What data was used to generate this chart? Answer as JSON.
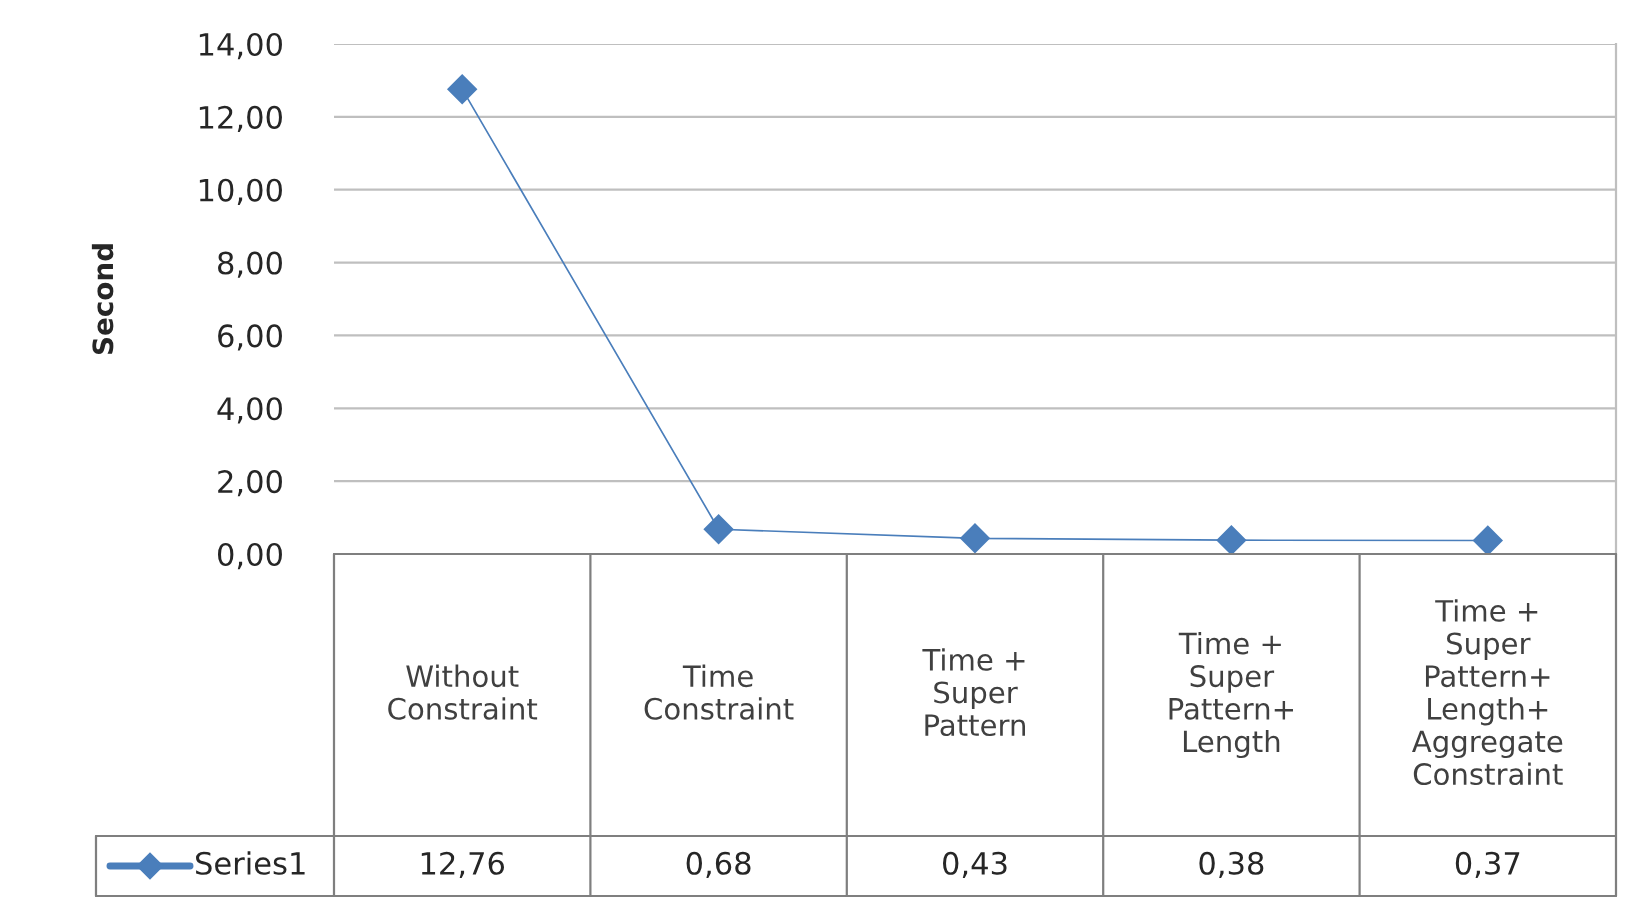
{
  "chart_data": {
    "type": "line",
    "ylabel": "Second",
    "categories": [
      "Without\nConstraint",
      "Time\nConstraint",
      "Time +\nSuper\nPattern",
      "Time +\nSuper\nPattern+\nLength",
      "Time +\nSuper\nPattern+\nLength+\nAggregate\nConstraint"
    ],
    "series": [
      {
        "name": "Series1",
        "color": "#4a7ebb",
        "values": [
          12.76,
          0.68,
          0.43,
          0.38,
          0.37
        ],
        "value_labels": [
          "12,76",
          "0,68",
          "0,43",
          "0,38",
          "0,37"
        ]
      }
    ],
    "ylim": [
      0,
      14
    ],
    "yticks": [
      {
        "value": 0,
        "label": "0,00"
      },
      {
        "value": 2,
        "label": "2,00"
      },
      {
        "value": 4,
        "label": "4,00"
      },
      {
        "value": 6,
        "label": "6,00"
      },
      {
        "value": 8,
        "label": "8,00"
      },
      {
        "value": 10,
        "label": "10,00"
      },
      {
        "value": 12,
        "label": "12,00"
      },
      {
        "value": 14,
        "label": "14,00"
      }
    ],
    "grid": "y",
    "marker": "diamond",
    "line_style": "solid"
  }
}
